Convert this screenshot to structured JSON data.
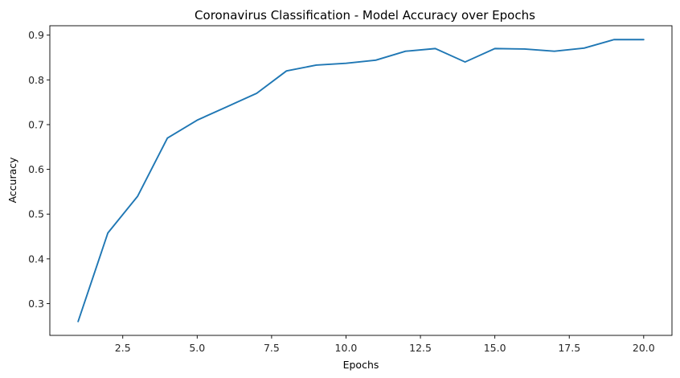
{
  "chart_data": {
    "type": "line",
    "title": "Coronavirus Classification - Model Accuracy over Epochs",
    "xlabel": "Epochs",
    "ylabel": "Accuracy",
    "xlim": [
      0.05,
      20.95
    ],
    "ylim": [
      0.229,
      0.921
    ],
    "x_ticks": [
      2.5,
      5.0,
      7.5,
      10.0,
      12.5,
      15.0,
      17.5,
      20.0
    ],
    "x_tick_labels": [
      "2.5",
      "5.0",
      "7.5",
      "10.0",
      "12.5",
      "15.0",
      "17.5",
      "20.0"
    ],
    "y_ticks": [
      0.3,
      0.4,
      0.5,
      0.6,
      0.7,
      0.8,
      0.9
    ],
    "y_tick_labels": [
      "0.3",
      "0.4",
      "0.5",
      "0.6",
      "0.7",
      "0.8",
      "0.9"
    ],
    "grid": false,
    "legend": "none",
    "series": [
      {
        "color": "#1f77b4",
        "x": [
          1,
          2,
          3,
          4,
          5,
          6,
          7,
          8,
          9,
          10,
          11,
          12,
          13,
          14,
          15,
          16,
          17,
          18,
          19,
          20
        ],
        "y": [
          0.26,
          0.458,
          0.54,
          0.67,
          0.71,
          0.74,
          0.77,
          0.82,
          0.833,
          0.837,
          0.844,
          0.864,
          0.87,
          0.84,
          0.87,
          0.869,
          0.864,
          0.871,
          0.89,
          0.89
        ]
      }
    ]
  }
}
